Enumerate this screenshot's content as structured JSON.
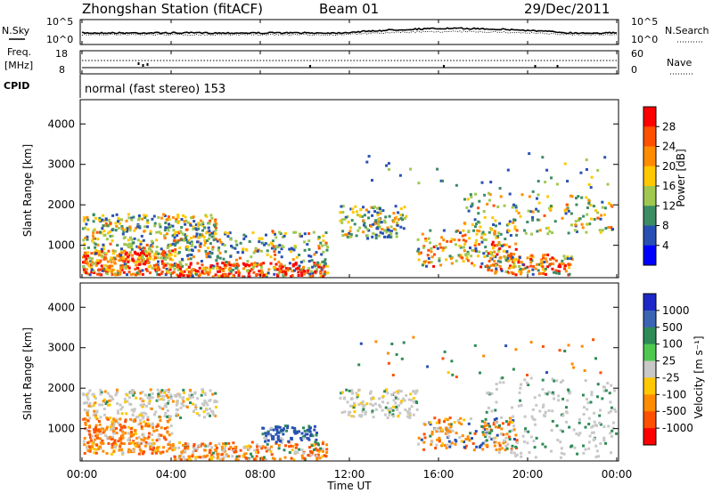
{
  "header": {
    "station": "Zhongshan Station (fitACF)",
    "beam": "Beam 01",
    "date": "29/Dec/2011"
  },
  "noise_panel": {
    "left_label": "N.Sky",
    "right_label": "N.Search",
    "left_ticks": [
      "10^5",
      "10^0"
    ],
    "right_ticks": [
      "10^5",
      "10^0"
    ]
  },
  "freq_panel": {
    "left_label_1": "Freq.",
    "left_label_2": "[MHz]",
    "left_ticks": [
      "18",
      "8"
    ],
    "right_label": "Nave",
    "right_ticks": [
      "60",
      "0"
    ],
    "cpid_label": "CPID",
    "cpid_text": "normal (fast stereo) 153"
  },
  "chart_data": [
    {
      "type": "heatmap",
      "name": "power",
      "ylabel": "Slant Range [km]",
      "yticks": [
        1000,
        2000,
        3000,
        4000
      ],
      "ylim": [
        200,
        4600
      ],
      "xlim_hours": [
        0,
        24
      ],
      "colorbar_label": "Power [dB]",
      "colorbar_ticks": [
        "28",
        "24",
        "20",
        "16",
        "12",
        "8",
        "4"
      ],
      "colorbar_colors": [
        "#ff0000",
        "#ff5000",
        "#ff8c00",
        "#ffc800",
        "#a0c850",
        "#3c8c64",
        "#2850b4",
        "#0000ff"
      ]
    },
    {
      "type": "heatmap",
      "name": "velocity",
      "ylabel": "Slant Range [km]",
      "yticks": [
        1000,
        2000,
        3000,
        4000
      ],
      "ylim": [
        200,
        4600
      ],
      "xlim_hours": [
        0,
        24
      ],
      "colorbar_label": "Velocity [m s⁻¹]",
      "colorbar_ticks": [
        "1000",
        "500",
        "100",
        "25",
        "-25",
        "-100",
        "-500",
        "-1000"
      ],
      "colorbar_colors": [
        "#1e28c8",
        "#3c64b4",
        "#2e8b57",
        "#50c850",
        "#c8c8c8",
        "#ffc800",
        "#ff8c00",
        "#ff5000",
        "#ff0000"
      ]
    }
  ],
  "x_axis": {
    "tick_labels": [
      "00:00",
      "04:00",
      "08:00",
      "12:00",
      "16:00",
      "20:00",
      "00:00"
    ],
    "label": "Time UT"
  },
  "colors": {
    "power_series": [
      "#ff0000",
      "#ff5000",
      "#ff8c00",
      "#ffc800",
      "#a0c850",
      "#3c8c64",
      "#2850b4"
    ],
    "velocity_series": [
      "#ff8c00",
      "#ff5000",
      "#c8c8c8",
      "#2e8b57",
      "#2850b4",
      "#ffc800"
    ]
  }
}
